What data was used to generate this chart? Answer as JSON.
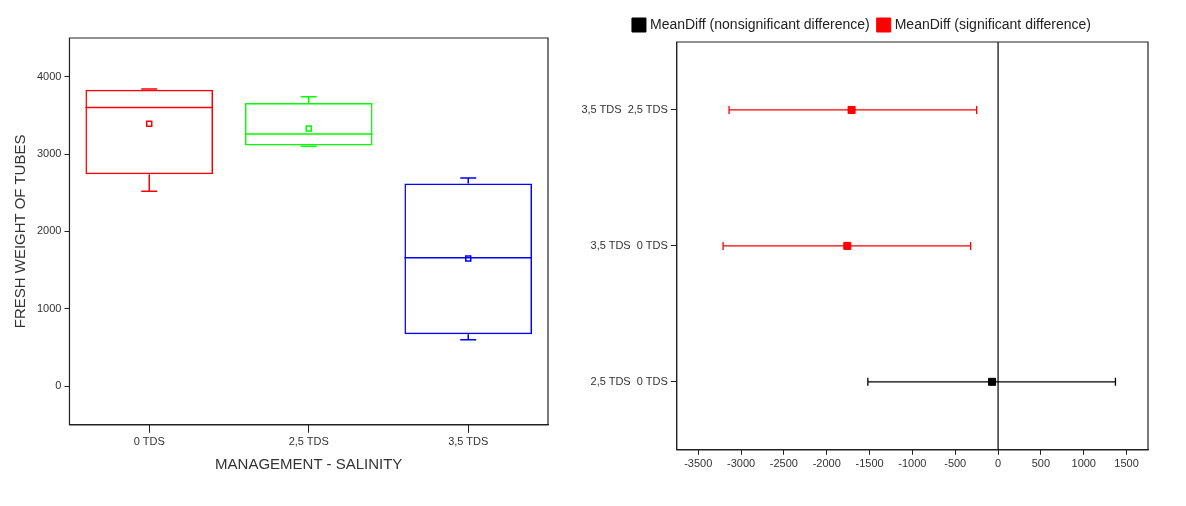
{
  "chart_data": [
    {
      "type": "box",
      "categories": [
        "0 TDS",
        "2,5 TDS",
        "3,5 TDS"
      ],
      "xlabel": "MANAGEMENT - SALINITY",
      "ylabel": "FRESH WEIGHT OF TUBES",
      "ylim": [
        -500,
        4500
      ],
      "yticks": [
        0,
        1000,
        2000,
        3000,
        4000
      ],
      "colors": [
        "#ff0000",
        "#00ff00",
        "#0000ff"
      ],
      "grid": false,
      "legend": false,
      "boxes": [
        {
          "low": 2520,
          "q1": 2740,
          "median": 3600,
          "q3": 3830,
          "high": 3840,
          "mean": 3390
        },
        {
          "low": 3100,
          "q1": 3110,
          "median": 3260,
          "q3": 3660,
          "high": 3740,
          "mean": 3330
        },
        {
          "low": 600,
          "q1": 670,
          "median": 1660,
          "q3": 2620,
          "high": 2690,
          "mean": 1650
        }
      ]
    },
    {
      "type": "scatter",
      "orientation": "horizontal",
      "categories": [
        "3,5 TDS  2,5 TDS",
        "3,5 TDS  0 TDS",
        "2,5 TDS  0 TDS"
      ],
      "xlim": [
        -3750,
        1750
      ],
      "xticks": [
        -3500,
        -3000,
        -2500,
        -2000,
        -1500,
        -1000,
        -500,
        0,
        500,
        1000,
        1500
      ],
      "marker": "square",
      "legend": "top",
      "grid": false,
      "ref_lines": [
        {
          "axis": "x",
          "value": 0,
          "color": "#000000"
        }
      ],
      "series": [
        {
          "name": "MeanDiff (nonsignificant difference)",
          "color": "#000000",
          "values": [
            null,
            null,
            -70
          ],
          "errors": [
            null,
            null,
            [
              -1520,
              1370
            ]
          ]
        },
        {
          "name": "MeanDiff (significant difference)",
          "color": "#ff0000",
          "values": [
            -1710,
            -1760,
            null
          ],
          "errors": [
            [
              -3140,
              -250
            ],
            [
              -3210,
              -320
            ],
            null
          ]
        }
      ]
    }
  ]
}
